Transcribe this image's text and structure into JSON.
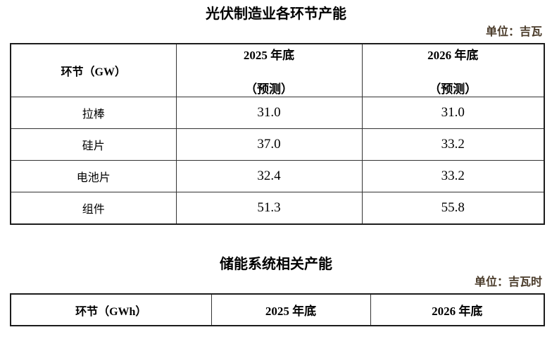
{
  "colors": {
    "unit_label": "#4a3b2a",
    "border": "#333333",
    "text": "#000000",
    "background": "#ffffff"
  },
  "tables": [
    {
      "title": "光伏制造业各环节产能",
      "unit_label": "单位：吉瓦",
      "header": {
        "col1": "环节（GW）",
        "col2_line1": "2025 年底",
        "col2_line2": "（预测）",
        "col3_line1": "2026 年底",
        "col3_line2": "（预测）"
      },
      "rows": [
        {
          "label": "拉棒",
          "y2025": "31.0",
          "y2026": "31.0"
        },
        {
          "label": "硅片",
          "y2025": "37.0",
          "y2026": "33.2"
        },
        {
          "label": "电池片",
          "y2025": "32.4",
          "y2026": "33.2"
        },
        {
          "label": "组件",
          "y2025": "51.3",
          "y2026": "55.8"
        }
      ]
    },
    {
      "title": "储能系统相关产能",
      "unit_label": "单位：吉瓦时",
      "header": {
        "col1": "环节（GWh）",
        "col2": "2025 年底",
        "col3": "2026 年底"
      },
      "rows": []
    }
  ],
  "chart_data": [
    {
      "type": "table",
      "title": "光伏制造业各环节产能",
      "unit": "吉瓦",
      "columns": [
        "环节（GW）",
        "2025 年底（预测）",
        "2026 年底（预测）"
      ],
      "categories": [
        "拉棒",
        "硅片",
        "电池片",
        "组件"
      ],
      "series": [
        {
          "name": "2025 年底（预测）",
          "values": [
            31.0,
            37.0,
            32.4,
            51.3
          ]
        },
        {
          "name": "2026 年底（预测）",
          "values": [
            31.0,
            33.2,
            33.2,
            55.8
          ]
        }
      ]
    },
    {
      "type": "table",
      "title": "储能系统相关产能",
      "unit": "吉瓦时",
      "columns": [
        "环节（GWh）",
        "2025 年底",
        "2026 年底"
      ],
      "categories": [],
      "series": []
    }
  ]
}
